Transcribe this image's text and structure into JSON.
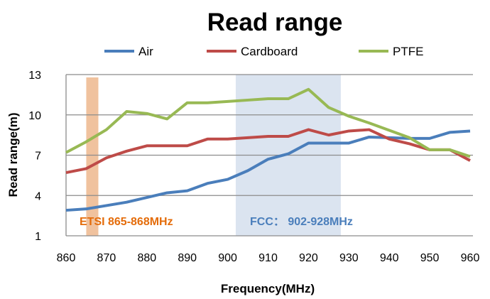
{
  "chart_data": {
    "type": "line",
    "title": "Read range",
    "xlabel": "Frequency(MHz)",
    "ylabel": "Read range(m)",
    "xlim": [
      860,
      960
    ],
    "ylim": [
      1,
      13
    ],
    "xticks": [
      860,
      870,
      880,
      890,
      900,
      910,
      920,
      930,
      940,
      950,
      960
    ],
    "yticks": [
      1,
      4,
      7,
      10,
      13
    ],
    "grid": "horizontal",
    "legend_position": "top",
    "x": [
      860,
      865,
      870,
      875,
      880,
      885,
      890,
      895,
      900,
      905,
      910,
      915,
      920,
      925,
      930,
      935,
      940,
      945,
      950,
      955,
      960
    ],
    "series": [
      {
        "name": "Air",
        "color": "#4a7ebb",
        "values": [
          2.9,
          3.0,
          3.25,
          3.5,
          3.85,
          4.2,
          4.35,
          4.9,
          5.2,
          5.85,
          6.7,
          7.1,
          7.9,
          7.9,
          7.9,
          8.35,
          8.3,
          8.25,
          8.25,
          8.7,
          8.8
        ]
      },
      {
        "name": "Cardboard",
        "color": "#be4b48",
        "values": [
          5.7,
          6.0,
          6.8,
          7.3,
          7.7,
          7.7,
          7.7,
          8.2,
          8.2,
          8.3,
          8.4,
          8.4,
          8.9,
          8.5,
          8.8,
          8.9,
          8.2,
          7.85,
          7.4,
          7.4,
          6.6
        ]
      },
      {
        "name": "PTFE",
        "color": "#98b954",
        "values": [
          7.2,
          8.0,
          8.9,
          10.25,
          10.1,
          9.7,
          10.9,
          10.9,
          11.0,
          11.1,
          11.2,
          11.2,
          11.9,
          10.55,
          9.9,
          9.4,
          8.85,
          8.3,
          7.4,
          7.4,
          6.9
        ]
      }
    ],
    "bands": [
      {
        "label": "ETSI 865-868MHz",
        "from": 865,
        "to": 868,
        "color": "#f0c29e",
        "text_color": "#e46c0a"
      },
      {
        "label": "FCC： 902-928MHz",
        "from": 902,
        "to": 928,
        "color": "#dbe4f0",
        "text_color": "#4a7ebb"
      }
    ]
  }
}
